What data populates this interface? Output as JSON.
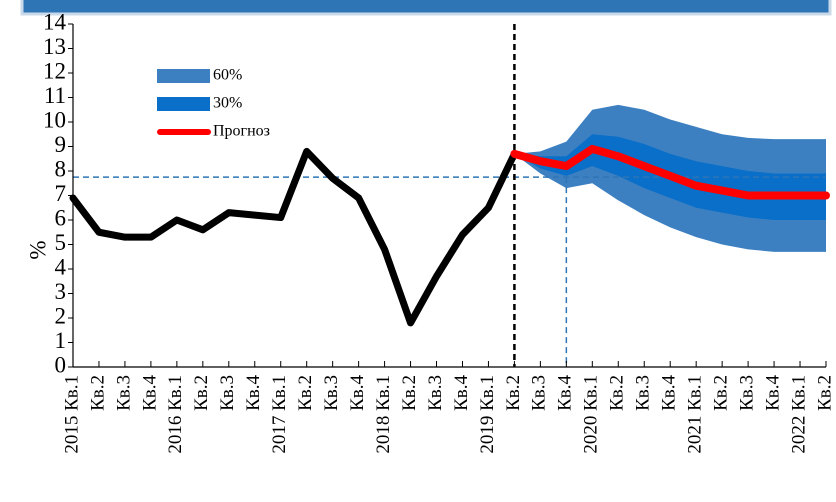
{
  "chart_data": {
    "type": "fan",
    "y_label": "%",
    "categories": [
      "2015 Кв.1",
      "Кв.2",
      "Кв.3",
      "Кв.4",
      "2016 Кв.1",
      "Кв.2",
      "Кв.3",
      "Кв.4",
      "2017 Кв.1",
      "Кв.2",
      "Кв.3",
      "Кв.4",
      "2018 Кв.1",
      "Кв.2",
      "Кв.3",
      "Кв.4",
      "2019 Кв.1",
      "Кв.2",
      "Кв.3",
      "Кв.4",
      "2020 Кв.1",
      "Кв.2",
      "Кв.3",
      "Кв.4",
      "2021 Кв.1",
      "Кв.2",
      "Кв.3",
      "Кв.4",
      "2022 Кв.1",
      "Кв.2"
    ],
    "ylim": [
      0,
      14
    ],
    "yticks": [
      0,
      1,
      2,
      3,
      4,
      5,
      6,
      7,
      8,
      9,
      10,
      11,
      12,
      13,
      14
    ],
    "bands": [
      {
        "name": "60%",
        "color": "#3d80c2",
        "lower": [
          null,
          null,
          null,
          null,
          null,
          null,
          null,
          null,
          null,
          null,
          null,
          null,
          null,
          null,
          null,
          null,
          null,
          8.7,
          7.9,
          7.3,
          7.5,
          6.8,
          6.2,
          5.7,
          5.3,
          5.0,
          4.8,
          4.7,
          4.7,
          4.7
        ],
        "upper": [
          null,
          null,
          null,
          null,
          null,
          null,
          null,
          null,
          null,
          null,
          null,
          null,
          null,
          null,
          null,
          null,
          null,
          8.7,
          8.8,
          9.2,
          10.5,
          10.7,
          10.5,
          10.1,
          9.8,
          9.5,
          9.35,
          9.3,
          9.3,
          9.3
        ]
      },
      {
        "name": "30%",
        "color": "#0a6fc8",
        "lower": [
          null,
          null,
          null,
          null,
          null,
          null,
          null,
          null,
          null,
          null,
          null,
          null,
          null,
          null,
          null,
          null,
          null,
          8.7,
          8.1,
          7.8,
          8.2,
          7.8,
          7.3,
          6.9,
          6.5,
          6.3,
          6.1,
          6.0,
          6.0,
          6.0
        ],
        "upper": [
          null,
          null,
          null,
          null,
          null,
          null,
          null,
          null,
          null,
          null,
          null,
          null,
          null,
          null,
          null,
          null,
          null,
          8.7,
          8.6,
          8.6,
          9.5,
          9.4,
          9.1,
          8.7,
          8.4,
          8.2,
          8.0,
          7.9,
          7.9,
          7.9
        ]
      }
    ],
    "series": [
      {
        "color": "#000000",
        "values": [
          6.9,
          5.5,
          5.3,
          5.3,
          6.0,
          5.6,
          6.3,
          6.2,
          6.1,
          8.8,
          7.7,
          6.9,
          4.8,
          1.8,
          3.7,
          5.4,
          6.5,
          8.7,
          null,
          null,
          null,
          null,
          null,
          null,
          null,
          null,
          null,
          null,
          null,
          null
        ]
      },
      {
        "name": "Прогноз",
        "color": "#ff0000",
        "values": [
          null,
          null,
          null,
          null,
          null,
          null,
          null,
          null,
          null,
          null,
          null,
          null,
          null,
          null,
          null,
          null,
          null,
          8.7,
          8.4,
          8.2,
          8.9,
          8.6,
          8.2,
          7.8,
          7.4,
          7.2,
          7.0,
          7.0,
          7.0,
          7.0
        ]
      }
    ],
    "hlines": [
      {
        "at": 7.75,
        "color": "#2e75b6"
      }
    ],
    "vlines": [
      {
        "at": 17,
        "color": "#000000"
      },
      {
        "at": 19,
        "color": "#2e75b6"
      }
    ]
  }
}
